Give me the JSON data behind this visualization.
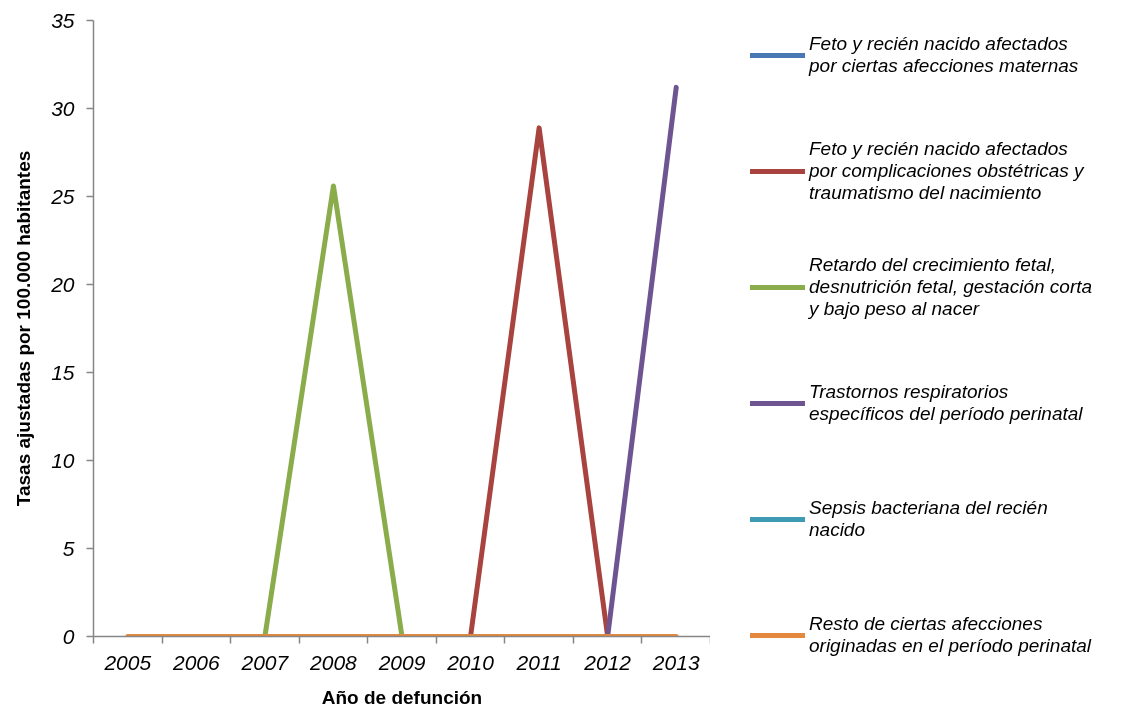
{
  "chart_data": {
    "type": "line",
    "xlabel": "Año de defunción",
    "ylabel": "Tasas ajustadas por 100.000 habitantes",
    "categories": [
      "2005",
      "2006",
      "2007",
      "2008",
      "2009",
      "2010",
      "2011",
      "2012",
      "2013"
    ],
    "ylim": [
      0,
      35
    ],
    "yticks": [
      0,
      5,
      10,
      15,
      20,
      25,
      30,
      35
    ],
    "legend": "right",
    "series": [
      {
        "name": "Feto y recién nacido afectados por ciertas afecciones maternas",
        "color": "#4a78b4",
        "values": [
          null,
          null,
          null,
          null,
          null,
          null,
          null,
          null,
          null
        ]
      },
      {
        "name": "Feto y recién nacido afectados por complicaciones obstétricas y traumatismo del nacimiento",
        "color": "#a9433f",
        "values": [
          null,
          null,
          null,
          null,
          null,
          0,
          28.9,
          0,
          null
        ]
      },
      {
        "name": "Retardo del crecimiento fetal, desnutrición fetal, gestación corta y bajo peso al nacer",
        "color": "#8aac4b",
        "values": [
          null,
          null,
          0,
          25.6,
          0,
          null,
          null,
          null,
          null
        ]
      },
      {
        "name": "Trastornos respiratorios específicos del período perinatal",
        "color": "#6e5592",
        "values": [
          null,
          null,
          null,
          null,
          null,
          null,
          null,
          0,
          31.2
        ]
      },
      {
        "name": "Sepsis bacteriana del recién nacido",
        "color": "#3f9ab4",
        "values": [
          null,
          null,
          null,
          null,
          null,
          null,
          null,
          null,
          null
        ]
      },
      {
        "name": "Resto de ciertas afecciones originadas en el período perinatal",
        "color": "#e3883d",
        "values": [
          0,
          0,
          0,
          0,
          0,
          0,
          0,
          0,
          0
        ]
      }
    ]
  }
}
